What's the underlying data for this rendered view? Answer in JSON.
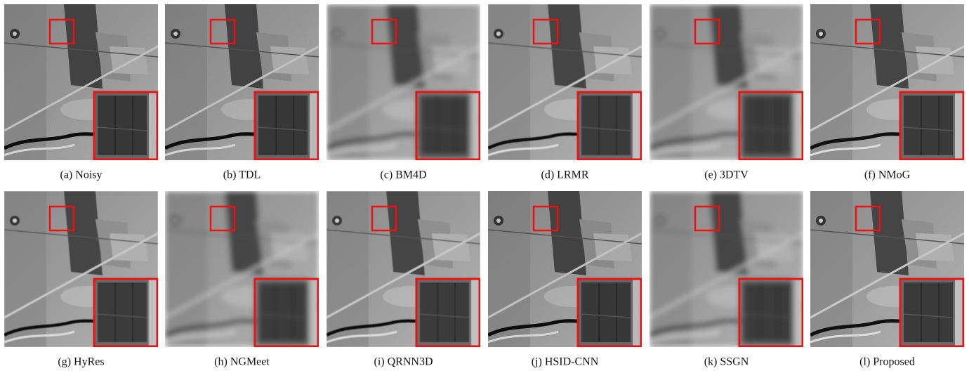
{
  "panels": [
    {
      "caption": "(a) Noisy"
    },
    {
      "caption": "(b) TDL"
    },
    {
      "caption": "(c) BM4D"
    },
    {
      "caption": "(d) LRMR"
    },
    {
      "caption": "(e) 3DTV"
    },
    {
      "caption": "(f) NMoG"
    },
    {
      "caption": "(g) HyRes"
    },
    {
      "caption": "(h) NGMeet"
    },
    {
      "caption": "(i) QRNN3D"
    },
    {
      "caption": "(j) HSID-CNN"
    },
    {
      "caption": "(k) SSGN"
    },
    {
      "caption": "(l) Proposed"
    }
  ]
}
